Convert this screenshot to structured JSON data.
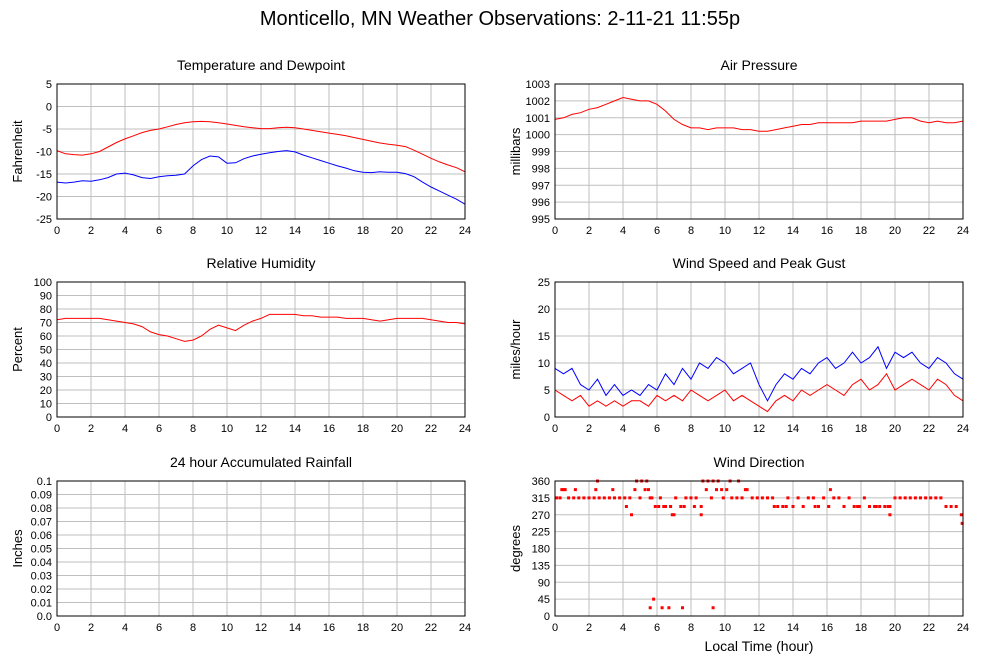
{
  "page": {
    "title": "Monticello, MN Weather Observations: 2-11-21 11:55p"
  },
  "chart_data": [
    {
      "id": "temp",
      "type": "line",
      "title": "Temperature and Dewpoint",
      "xlabel": "",
      "ylabel": "Fahrenheit",
      "xlim": [
        0,
        24
      ],
      "ylim": [
        -25,
        5
      ],
      "xticks": [
        0,
        2,
        4,
        6,
        8,
        10,
        12,
        14,
        16,
        18,
        20,
        22,
        24
      ],
      "yticks": [
        -25,
        -20,
        -15,
        -10,
        -5,
        0,
        5
      ],
      "grid": true,
      "series": [
        {
          "color": "#ff0000",
          "render": "line",
          "x": [
            0,
            0.5,
            1,
            1.5,
            2,
            2.5,
            3,
            3.5,
            4,
            4.5,
            5,
            5.5,
            6,
            6.5,
            7,
            7.5,
            8,
            8.5,
            9,
            9.5,
            10,
            10.5,
            11,
            11.5,
            12,
            12.5,
            13,
            13.5,
            14,
            14.5,
            15,
            15.5,
            16,
            16.5,
            17,
            17.5,
            18,
            18.5,
            19,
            19.5,
            20,
            20.5,
            21,
            21.5,
            22,
            22.5,
            23,
            23.5,
            24
          ],
          "values": [
            -9.8,
            -10.5,
            -10.7,
            -10.8,
            -10.5,
            -10,
            -9,
            -8,
            -7.2,
            -6.5,
            -5.8,
            -5.3,
            -5,
            -4.5,
            -4,
            -3.6,
            -3.4,
            -3.3,
            -3.4,
            -3.6,
            -3.9,
            -4.2,
            -4.5,
            -4.7,
            -4.9,
            -4.9,
            -4.7,
            -4.6,
            -4.7,
            -5,
            -5.3,
            -5.6,
            -5.9,
            -6.2,
            -6.5,
            -6.9,
            -7.3,
            -7.7,
            -8.1,
            -8.4,
            -8.6,
            -8.9,
            -9.7,
            -10.6,
            -11.5,
            -12.3,
            -13,
            -13.6,
            -14.5
          ]
        },
        {
          "color": "#0000ff",
          "render": "line",
          "x": [
            0,
            0.5,
            1,
            1.5,
            2,
            2.5,
            3,
            3.5,
            4,
            4.5,
            5,
            5.5,
            6,
            6.5,
            7,
            7.5,
            8,
            8.5,
            9,
            9.5,
            10,
            10.5,
            11,
            11.5,
            12,
            12.5,
            13,
            13.5,
            14,
            14.5,
            15,
            15.5,
            16,
            16.5,
            17,
            17.5,
            18,
            18.5,
            19,
            19.5,
            20,
            20.5,
            21,
            21.5,
            22,
            22.5,
            23,
            23.5,
            24
          ],
          "values": [
            -16.8,
            -17,
            -16.8,
            -16.5,
            -16.6,
            -16.3,
            -15.8,
            -15,
            -14.8,
            -15.2,
            -15.8,
            -16,
            -15.6,
            -15.4,
            -15.3,
            -15,
            -13.2,
            -11.8,
            -11,
            -11.2,
            -12.6,
            -12.5,
            -11.6,
            -11,
            -10.6,
            -10.3,
            -10,
            -9.8,
            -10.1,
            -10.8,
            -11.4,
            -12,
            -12.6,
            -13.2,
            -13.7,
            -14.3,
            -14.6,
            -14.7,
            -14.5,
            -14.6,
            -14.6,
            -14.9,
            -15.6,
            -16.8,
            -17.9,
            -18.8,
            -19.7,
            -20.6,
            -21.7
          ]
        }
      ]
    },
    {
      "id": "pressure",
      "type": "line",
      "title": "Air Pressure",
      "xlabel": "",
      "ylabel": "millibars",
      "xlim": [
        0,
        24
      ],
      "ylim": [
        995,
        1003
      ],
      "xticks": [
        0,
        2,
        4,
        6,
        8,
        10,
        12,
        14,
        16,
        18,
        20,
        22,
        24
      ],
      "yticks": [
        995,
        996,
        997,
        998,
        999,
        1000,
        1001,
        1002,
        1003
      ],
      "grid": true,
      "series": [
        {
          "color": "#ff0000",
          "render": "line",
          "x": [
            0,
            0.5,
            1,
            1.5,
            2,
            2.5,
            3,
            3.5,
            4,
            4.5,
            5,
            5.5,
            6,
            6.5,
            7,
            7.5,
            8,
            8.5,
            9,
            9.5,
            10,
            10.5,
            11,
            11.5,
            12,
            12.5,
            13,
            13.5,
            14,
            14.5,
            15,
            15.5,
            16,
            16.5,
            17,
            17.5,
            18,
            18.5,
            19,
            19.5,
            20,
            20.5,
            21,
            21.5,
            22,
            22.5,
            23,
            23.5,
            24
          ],
          "values": [
            1000.9,
            1001,
            1001.2,
            1001.3,
            1001.5,
            1001.6,
            1001.8,
            1002,
            1002.2,
            1002.1,
            1002,
            1002,
            1001.8,
            1001.4,
            1000.9,
            1000.6,
            1000.4,
            1000.4,
            1000.3,
            1000.4,
            1000.4,
            1000.4,
            1000.3,
            1000.3,
            1000.2,
            1000.2,
            1000.3,
            1000.4,
            1000.5,
            1000.6,
            1000.6,
            1000.7,
            1000.7,
            1000.7,
            1000.7,
            1000.7,
            1000.8,
            1000.8,
            1000.8,
            1000.8,
            1000.9,
            1001,
            1001,
            1000.8,
            1000.7,
            1000.8,
            1000.7,
            1000.7,
            1000.8
          ]
        }
      ]
    },
    {
      "id": "humidity",
      "type": "line",
      "title": "Relative Humidity",
      "xlabel": "",
      "ylabel": "Percent",
      "xlim": [
        0,
        24
      ],
      "ylim": [
        0,
        100
      ],
      "xticks": [
        0,
        2,
        4,
        6,
        8,
        10,
        12,
        14,
        16,
        18,
        20,
        22,
        24
      ],
      "yticks": [
        0,
        10,
        20,
        30,
        40,
        50,
        60,
        70,
        80,
        90,
        100
      ],
      "grid": true,
      "series": [
        {
          "color": "#ff0000",
          "render": "line",
          "x": [
            0,
            0.5,
            1,
            1.5,
            2,
            2.5,
            3,
            3.5,
            4,
            4.5,
            5,
            5.5,
            6,
            6.5,
            7,
            7.5,
            8,
            8.5,
            9,
            9.5,
            10,
            10.5,
            11,
            11.5,
            12,
            12.5,
            13,
            13.5,
            14,
            14.5,
            15,
            15.5,
            16,
            16.5,
            17,
            17.5,
            18,
            18.5,
            19,
            19.5,
            20,
            20.5,
            21,
            21.5,
            22,
            22.5,
            23,
            23.5,
            24
          ],
          "values": [
            72,
            73,
            73,
            73,
            73,
            73,
            72,
            71,
            70,
            69,
            67,
            63,
            61,
            60,
            58,
            56,
            57,
            60,
            65,
            68,
            66,
            64,
            68,
            71,
            73,
            76,
            76,
            76,
            76,
            75,
            75,
            74,
            74,
            74,
            73,
            73,
            73,
            72,
            71,
            72,
            73,
            73,
            73,
            73,
            72,
            71,
            70,
            70,
            69
          ]
        }
      ]
    },
    {
      "id": "wind",
      "type": "line",
      "title": "Wind Speed and Peak Gust",
      "xlabel": "",
      "ylabel": "miles/hour",
      "xlim": [
        0,
        24
      ],
      "ylim": [
        0,
        25
      ],
      "xticks": [
        0,
        2,
        4,
        6,
        8,
        10,
        12,
        14,
        16,
        18,
        20,
        22,
        24
      ],
      "yticks": [
        0,
        5,
        10,
        15,
        20,
        25
      ],
      "grid": true,
      "series": [
        {
          "color": "#ff0000",
          "render": "line",
          "x": [
            0,
            0.5,
            1,
            1.5,
            2,
            2.5,
            3,
            3.5,
            4,
            4.5,
            5,
            5.5,
            6,
            6.5,
            7,
            7.5,
            8,
            8.5,
            9,
            9.5,
            10,
            10.5,
            11,
            11.5,
            12,
            12.5,
            13,
            13.5,
            14,
            14.5,
            15,
            15.5,
            16,
            16.5,
            17,
            17.5,
            18,
            18.5,
            19,
            19.5,
            20,
            20.5,
            21,
            21.5,
            22,
            22.5,
            23,
            23.5,
            24
          ],
          "values": [
            5,
            4,
            3,
            4,
            2,
            3,
            2,
            3,
            2,
            3,
            3,
            2,
            4,
            3,
            4,
            3,
            5,
            4,
            3,
            4,
            5,
            3,
            4,
            3,
            2,
            1,
            3,
            4,
            3,
            5,
            4,
            5,
            6,
            5,
            4,
            6,
            7,
            5,
            6,
            8,
            5,
            6,
            7,
            6,
            5,
            7,
            6,
            4,
            3
          ]
        },
        {
          "color": "#0000ff",
          "render": "line",
          "x": [
            0,
            0.5,
            1,
            1.5,
            2,
            2.5,
            3,
            3.5,
            4,
            4.5,
            5,
            5.5,
            6,
            6.5,
            7,
            7.5,
            8,
            8.5,
            9,
            9.5,
            10,
            10.5,
            11,
            11.5,
            12,
            12.5,
            13,
            13.5,
            14,
            14.5,
            15,
            15.5,
            16,
            16.5,
            17,
            17.5,
            18,
            18.5,
            19,
            19.5,
            20,
            20.5,
            21,
            21.5,
            22,
            22.5,
            23,
            23.5,
            24
          ],
          "values": [
            9,
            8,
            9,
            6,
            5,
            7,
            4,
            6,
            4,
            5,
            4,
            6,
            5,
            8,
            6,
            9,
            7,
            10,
            9,
            11,
            10,
            8,
            9,
            10,
            6,
            3,
            6,
            8,
            7,
            9,
            8,
            10,
            11,
            9,
            10,
            12,
            10,
            11,
            13,
            9,
            12,
            11,
            12,
            10,
            9,
            11,
            10,
            8,
            7
          ]
        }
      ]
    },
    {
      "id": "rain",
      "type": "line",
      "title": "24 hour Accumulated Rainfall",
      "xlabel": "",
      "ylabel": "Inches",
      "xlim": [
        0,
        24
      ],
      "ylim": [
        0,
        0.1
      ],
      "xticks": [
        0,
        2,
        4,
        6,
        8,
        10,
        12,
        14,
        16,
        18,
        20,
        22,
        24
      ],
      "yticks": [
        0.0,
        0.01,
        0.02,
        0.03,
        0.04,
        0.05,
        0.06,
        0.07,
        0.08,
        0.09,
        0.1
      ],
      "ytick_labels": [
        "0.0",
        "0.01",
        "0.02",
        "0.03",
        "0.04",
        "0.05",
        "0.06",
        "0.07",
        "0.08",
        "0.09",
        "0.1"
      ],
      "grid": true,
      "series": [
        {
          "color": "#ff00ff",
          "render": "line",
          "x": [
            0,
            24
          ],
          "values": [
            0,
            0
          ]
        }
      ]
    },
    {
      "id": "direction",
      "type": "scatter",
      "title": "Wind Direction",
      "xlabel": "Local Time (hour)",
      "ylabel": "degrees",
      "xlim": [
        0,
        24
      ],
      "ylim": [
        0,
        360
      ],
      "xticks": [
        0,
        2,
        4,
        6,
        8,
        10,
        12,
        14,
        16,
        18,
        20,
        22,
        24
      ],
      "yticks": [
        0,
        45,
        90,
        135,
        180,
        225,
        270,
        315,
        360
      ],
      "grid": true,
      "series": [
        {
          "color": "#ff0000",
          "render": "points",
          "x": [
            0.1,
            0.3,
            0.5,
            0.8,
            1.1,
            1.4,
            1.7,
            2.0,
            2.3,
            2.6,
            2.9,
            3.2,
            3.5,
            3.8,
            4.1,
            4.4,
            4.7,
            5.0,
            5.3,
            5.6,
            5.9,
            6.2,
            6.5,
            6.8,
            7.1,
            7.4,
            7.7,
            8.0,
            8.3,
            8.6,
            8.9,
            9.2,
            9.5,
            9.8,
            10.1,
            10.4,
            10.7,
            11.0,
            11.3,
            11.6,
            11.9,
            12.2,
            12.5,
            12.8,
            13.1,
            13.4,
            13.7,
            14.0,
            14.3,
            14.6,
            14.9,
            15.2,
            15.5,
            15.8,
            16.1,
            16.4,
            16.7,
            17.0,
            17.3,
            17.6,
            17.9,
            18.2,
            18.5,
            18.8,
            19.1,
            19.4,
            19.7,
            20.0,
            20.3,
            20.6,
            20.9,
            21.2,
            21.5,
            21.8,
            22.1,
            22.4,
            22.7,
            23.0,
            23.3,
            23.6,
            23.9,
            0.4,
            1.2,
            2.5,
            3.4,
            4.2,
            4.8,
            5.1,
            5.5,
            5.7,
            6.1,
            6.4,
            6.9,
            7.6,
            8.2,
            8.7,
            9.0,
            9.3,
            9.6,
            9.9,
            10.3,
            10.8,
            11.2,
            12.9,
            13.6,
            15.3,
            16.2,
            17.8,
            18.9,
            19.6,
            5.6,
            5.8,
            6.3,
            6.7,
            7.5,
            9.3,
            0.6,
            2.4,
            4.5,
            5.4,
            7.0,
            8.6,
            19.7,
            23.95
          ],
          "values": [
            315,
            315,
            337,
            315,
            315,
            315,
            315,
            315,
            315,
            315,
            315,
            315,
            315,
            315,
            315,
            315,
            337,
            315,
            337,
            315,
            292,
            315,
            292,
            292,
            315,
            292,
            315,
            315,
            315,
            292,
            337,
            315,
            337,
            337,
            337,
            315,
            315,
            315,
            337,
            315,
            315,
            315,
            315,
            315,
            292,
            292,
            315,
            292,
            315,
            292,
            315,
            315,
            292,
            315,
            292,
            315,
            315,
            292,
            315,
            292,
            292,
            315,
            292,
            292,
            292,
            292,
            292,
            315,
            315,
            315,
            315,
            315,
            315,
            315,
            315,
            315,
            315,
            292,
            292,
            292,
            270,
            337,
            337,
            360,
            337,
            292,
            360,
            360,
            337,
            315,
            292,
            292,
            270,
            292,
            292,
            360,
            360,
            360,
            360,
            315,
            360,
            360,
            337,
            292,
            292,
            292,
            337,
            292,
            292,
            292,
            22,
            45,
            22,
            22,
            22,
            22,
            337,
            337,
            270,
            360,
            270,
            270,
            270,
            247
          ]
        }
      ]
    }
  ]
}
